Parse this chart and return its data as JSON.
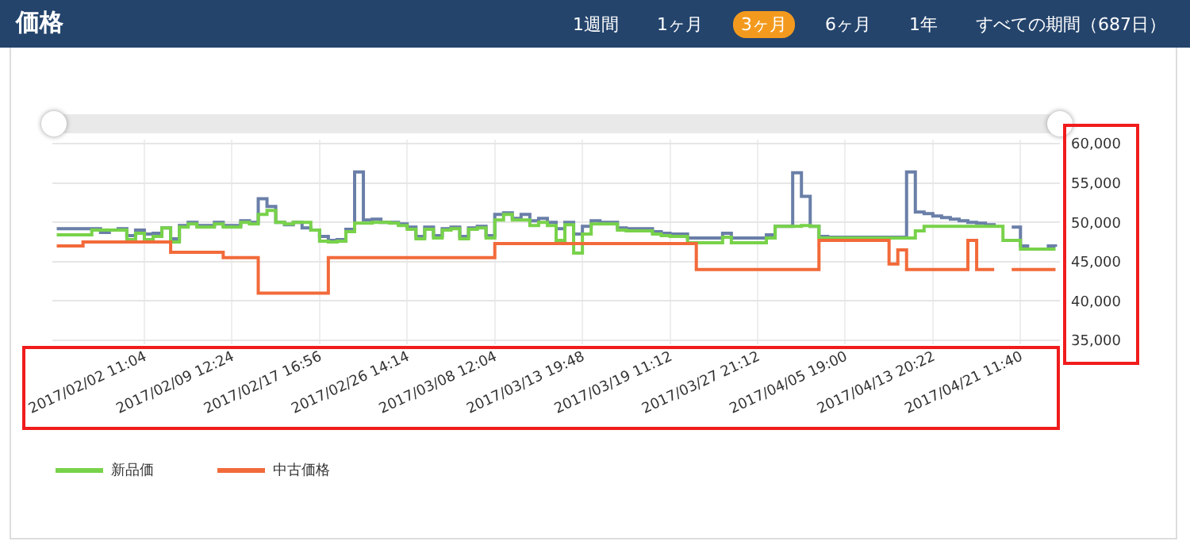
{
  "chart_data": {
    "type": "step",
    "title": "価格",
    "annotations": [
      "1週間",
      "1ヶ月",
      "3ヶ月",
      "6ヶ月",
      "1年",
      "すべての期間（687日）"
    ],
    "categories": [
      null,
      null,
      null,
      null,
      null,
      null,
      null,
      null,
      null,
      null,
      "2017/02/02 11:04",
      null,
      null,
      null,
      null,
      null,
      null,
      null,
      null,
      null,
      "2017/02/09 12:24",
      null,
      null,
      null,
      null,
      null,
      null,
      null,
      null,
      null,
      "2017/02/17 16:56",
      null,
      null,
      null,
      null,
      null,
      null,
      null,
      null,
      null,
      "2017/02/26 14:14",
      null,
      null,
      null,
      null,
      null,
      null,
      null,
      null,
      null,
      "2017/03/08 12:04",
      null,
      null,
      null,
      null,
      null,
      null,
      null,
      null,
      null,
      "2017/03/13 19:48",
      null,
      null,
      null,
      null,
      null,
      null,
      null,
      null,
      null,
      "2017/03/19 11:12",
      null,
      null,
      null,
      null,
      null,
      null,
      null,
      null,
      null,
      "2017/03/27 21:12",
      null,
      null,
      null,
      null,
      null,
      null,
      null,
      null,
      null,
      "2017/04/05 19:00",
      null,
      null,
      null,
      null,
      null,
      null,
      null,
      null,
      null,
      "2017/04/13 20:22",
      null,
      null,
      null,
      null,
      null,
      null,
      null,
      null,
      null,
      "2017/04/21 11:40",
      null,
      null,
      null,
      null
    ],
    "series": [
      {
        "color": "#6a7fa8",
        "values": [
          49200,
          49200,
          49200,
          49200,
          49200,
          48700,
          49000,
          49200,
          48300,
          49000,
          48500,
          48600,
          49300,
          47900,
          49600,
          50000,
          49600,
          49600,
          50000,
          49600,
          49600,
          50200,
          50000,
          53000,
          52000,
          50000,
          49700,
          50000,
          49300,
          49000,
          48200,
          47700,
          47800,
          49100,
          56400,
          50300,
          50400,
          50000,
          50000,
          49800,
          49400,
          48200,
          49400,
          48300,
          49200,
          49400,
          48200,
          49300,
          49500,
          48300,
          51000,
          51200,
          50500,
          51000,
          50200,
          50500,
          50000,
          49200,
          50000,
          48500,
          49500,
          50200,
          50000,
          50000,
          49300,
          49200,
          49200,
          49200,
          48800,
          48600,
          48500,
          48500,
          48000,
          48000,
          48000,
          48000,
          48600,
          48000,
          48000,
          48000,
          48000,
          48400,
          49500,
          49500,
          56300,
          53300,
          49500,
          48200,
          48100,
          48100,
          48100,
          48100,
          48100,
          48100,
          48100,
          48100,
          48100,
          56400,
          51300,
          51100,
          50800,
          50600,
          50400,
          50200,
          50000,
          49900,
          49700,
          49600,
          null,
          49400,
          47000,
          47000,
          null,
          47000,
          46900
        ]
      },
      {
        "name": "新品価",
        "color": "#78d24a",
        "values": [
          48400,
          48400,
          48400,
          48400,
          49000,
          49000,
          49000,
          49000,
          47800,
          48600,
          47800,
          48200,
          49300,
          47500,
          49400,
          49800,
          49400,
          49400,
          49800,
          49400,
          49400,
          50000,
          49800,
          51000,
          51500,
          50000,
          49800,
          50000,
          50000,
          49000,
          47600,
          47500,
          47600,
          48800,
          49900,
          49900,
          50000,
          50000,
          49900,
          49600,
          49100,
          47900,
          49100,
          48000,
          49000,
          49200,
          47900,
          49100,
          49300,
          48000,
          50300,
          51000,
          50300,
          50300,
          49600,
          50000,
          49600,
          47700,
          49700,
          46100,
          48500,
          49800,
          49800,
          49800,
          49000,
          48900,
          48900,
          48900,
          48500,
          48300,
          48200,
          48200,
          47400,
          47400,
          47400,
          47400,
          48100,
          47400,
          47400,
          47400,
          47400,
          48000,
          49500,
          49500,
          49500,
          49600,
          49500,
          48000,
          48000,
          48000,
          48000,
          48000,
          48000,
          48000,
          48000,
          48000,
          48000,
          48000,
          48900,
          49500,
          49500,
          49500,
          49500,
          49500,
          49500,
          49500,
          49500,
          49500,
          47700,
          47700,
          46600,
          46600,
          46600,
          46600,
          46600
        ]
      },
      {
        "name": "中古価格",
        "color": "#f26a3a",
        "values": [
          47000,
          47000,
          47000,
          47500,
          47500,
          47500,
          47500,
          47500,
          47500,
          47500,
          47500,
          47500,
          47500,
          46200,
          46200,
          46200,
          46200,
          46200,
          46200,
          45500,
          45500,
          45500,
          45500,
          41000,
          41000,
          41000,
          41000,
          41000,
          41000,
          41000,
          41000,
          45500,
          45500,
          45500,
          45500,
          45500,
          45500,
          45500,
          45500,
          45500,
          45500,
          45500,
          45500,
          45500,
          45500,
          45500,
          45500,
          45500,
          45500,
          45500,
          47300,
          47300,
          47300,
          47300,
          47300,
          47300,
          47300,
          47300,
          47300,
          47300,
          47300,
          47300,
          47300,
          47300,
          47300,
          47300,
          47300,
          47300,
          47300,
          47300,
          47300,
          47300,
          47300,
          44000,
          44000,
          44000,
          44000,
          44000,
          44000,
          44000,
          44000,
          44000,
          44000,
          44000,
          44000,
          44000,
          44000,
          47700,
          47700,
          47700,
          47700,
          47700,
          47700,
          47700,
          47700,
          44700,
          46500,
          44000,
          44000,
          44000,
          44000,
          44000,
          44000,
          44000,
          47700,
          44000,
          44000,
          44000,
          null,
          44000,
          44000,
          44000,
          44000,
          44000,
          44000
        ]
      }
    ],
    "ylim": [
      34500,
      60500
    ],
    "yticks": [
      {
        "value": 35000,
        "label": "35,000"
      },
      {
        "value": 40000,
        "label": "40,000"
      },
      {
        "value": 45000,
        "label": "45,000"
      },
      {
        "value": 50000,
        "label": "50,000"
      },
      {
        "value": 55000,
        "label": "55,000"
      },
      {
        "value": 60000,
        "label": "60,000"
      }
    ],
    "grid": true,
    "legend": "bottom left"
  }
}
